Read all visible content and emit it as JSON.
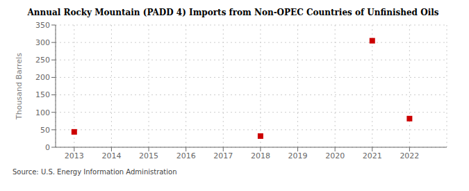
{
  "chart_data": {
    "type": "scatter",
    "title": "Annual Rocky Mountain (PADD 4) Imports from Non-OPEC Countries of Unfinished Oils",
    "ylabel": "Thousand Barrels",
    "annotations": [
      "Source: U.S. Energy Information Administration"
    ],
    "x": [
      2013,
      2018,
      2021,
      2022
    ],
    "values": [
      44,
      32,
      305,
      82
    ],
    "color": "#cc0000",
    "marker": "square",
    "xlim": [
      2012.5,
      2023.0
    ],
    "ylim": [
      0,
      350
    ],
    "xticks": [
      2013,
      2014,
      2015,
      2016,
      2017,
      2018,
      2019,
      2020,
      2021,
      2022
    ],
    "yticks": [
      0,
      50,
      100,
      150,
      200,
      250,
      300,
      350
    ],
    "grid": true
  }
}
